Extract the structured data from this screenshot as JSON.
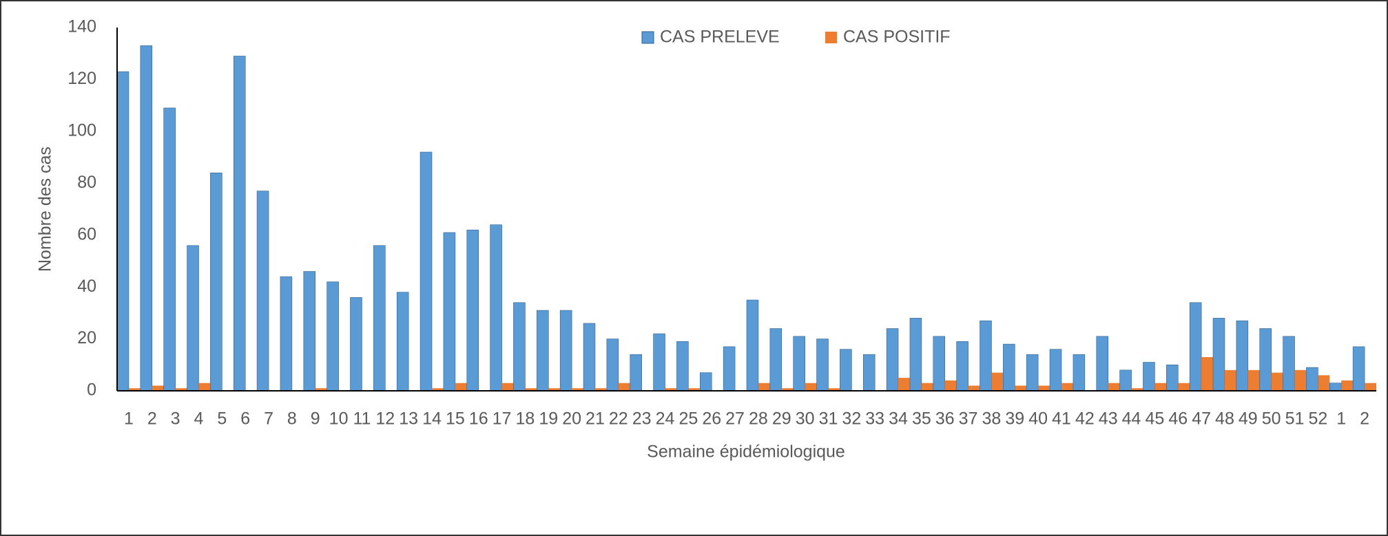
{
  "chart_data": {
    "type": "bar",
    "x_label": "Semaine épidémiologique",
    "y_label": "Nombre des cas",
    "categories": [
      "1",
      "2",
      "3",
      "4",
      "5",
      "6",
      "7",
      "8",
      "9",
      "10",
      "11",
      "12",
      "13",
      "14",
      "15",
      "16",
      "17",
      "18",
      "19",
      "20",
      "21",
      "22",
      "23",
      "24",
      "25",
      "26",
      "27",
      "28",
      "29",
      "30",
      "31",
      "32",
      "33",
      "34",
      "35",
      "36",
      "37",
      "38",
      "39",
      "40",
      "41",
      "42",
      "43",
      "44",
      "45",
      "46",
      "47",
      "48",
      "49",
      "50",
      "51",
      "52",
      "1",
      "2"
    ],
    "series": [
      {
        "name": "CAS PRELEVE",
        "color": "#5b9bd5",
        "values": [
          123,
          133,
          109,
          56,
          84,
          129,
          77,
          44,
          46,
          42,
          36,
          56,
          38,
          92,
          61,
          62,
          64,
          34,
          31,
          31,
          26,
          20,
          14,
          22,
          19,
          7,
          17,
          35,
          24,
          21,
          20,
          16,
          14,
          24,
          28,
          21,
          19,
          27,
          18,
          14,
          16,
          14,
          21,
          8,
          11,
          10,
          34,
          28,
          27,
          24,
          21,
          9,
          3,
          17
        ]
      },
      {
        "name": "CAS POSITIF",
        "color": "#ed7d31",
        "values": [
          1,
          2,
          1,
          3,
          0,
          0,
          0,
          0,
          1,
          0,
          0,
          0,
          0,
          1,
          3,
          0,
          3,
          1,
          1,
          1,
          1,
          3,
          0,
          1,
          1,
          0,
          0,
          3,
          1,
          3,
          1,
          0,
          0,
          5,
          3,
          4,
          2,
          7,
          2,
          2,
          3,
          0,
          3,
          1,
          3,
          3,
          13,
          8,
          8,
          7,
          8,
          6,
          4,
          3
        ]
      }
    ],
    "ylim": [
      0,
      140
    ],
    "yticks": [
      0,
      20,
      40,
      60,
      80,
      100,
      120,
      140
    ]
  }
}
